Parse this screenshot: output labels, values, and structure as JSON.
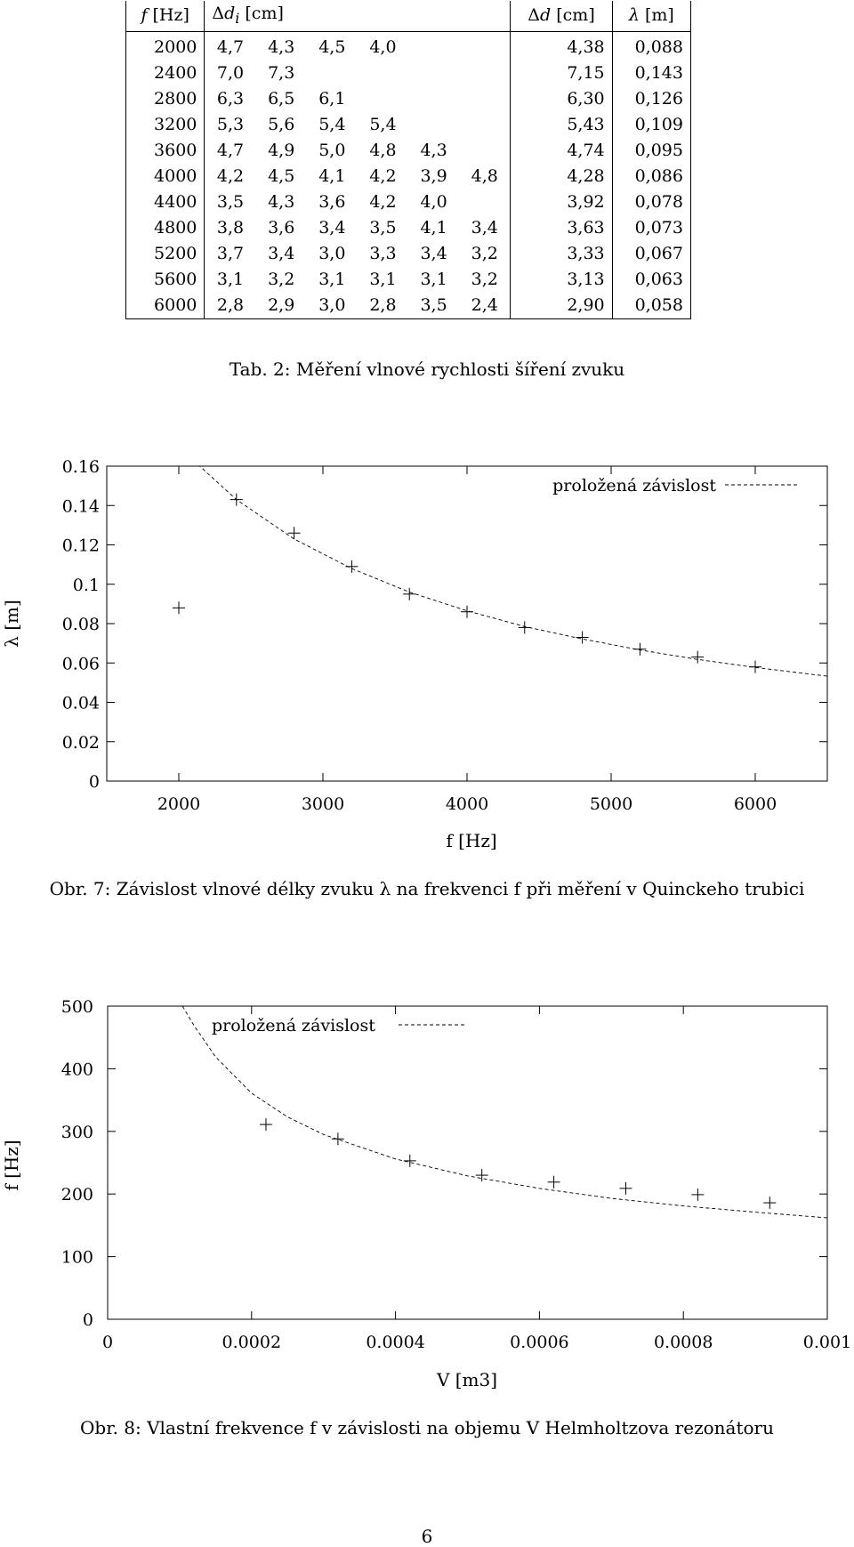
{
  "table": {
    "headers": {
      "f": "f [Hz]",
      "di": "Δd_i [cm]",
      "avg": "Δd [cm]",
      "lambda": "λ [m]"
    },
    "rows": [
      {
        "f": "2000",
        "d": [
          "4,7",
          "4,3",
          "4,5",
          "4,0",
          "",
          ""
        ],
        "avg": "4,38",
        "lambda": "0,088"
      },
      {
        "f": "2400",
        "d": [
          "7,0",
          "7,3",
          "",
          "",
          "",
          ""
        ],
        "avg": "7,15",
        "lambda": "0,143"
      },
      {
        "f": "2800",
        "d": [
          "6,3",
          "6,5",
          "6,1",
          "",
          "",
          ""
        ],
        "avg": "6,30",
        "lambda": "0,126"
      },
      {
        "f": "3200",
        "d": [
          "5,3",
          "5,6",
          "5,4",
          "5,4",
          "",
          ""
        ],
        "avg": "5,43",
        "lambda": "0,109"
      },
      {
        "f": "3600",
        "d": [
          "4,7",
          "4,9",
          "5,0",
          "4,8",
          "4,3",
          ""
        ],
        "avg": "4,74",
        "lambda": "0,095"
      },
      {
        "f": "4000",
        "d": [
          "4,2",
          "4,5",
          "4,1",
          "4,2",
          "3,9",
          "4,8"
        ],
        "avg": "4,28",
        "lambda": "0,086"
      },
      {
        "f": "4400",
        "d": [
          "3,5",
          "4,3",
          "3,6",
          "4,2",
          "4,0",
          ""
        ],
        "avg": "3,92",
        "lambda": "0,078"
      },
      {
        "f": "4800",
        "d": [
          "3,8",
          "3,6",
          "3,4",
          "3,5",
          "4,1",
          "3,4"
        ],
        "avg": "3,63",
        "lambda": "0,073"
      },
      {
        "f": "5200",
        "d": [
          "3,7",
          "3,4",
          "3,0",
          "3,3",
          "3,4",
          "3,2"
        ],
        "avg": "3,33",
        "lambda": "0,067"
      },
      {
        "f": "5600",
        "d": [
          "3,1",
          "3,2",
          "3,1",
          "3,1",
          "3,1",
          "3,2"
        ],
        "avg": "3,13",
        "lambda": "0,063"
      },
      {
        "f": "6000",
        "d": [
          "2,8",
          "2,9",
          "3,0",
          "2,8",
          "3,5",
          "2,4"
        ],
        "avg": "2,90",
        "lambda": "0,058"
      }
    ],
    "caption": "Tab. 2: Měření vlnové rychlosti šíření zvuku"
  },
  "chart_data": [
    {
      "type": "scatter",
      "title": "",
      "xlabel": "f [Hz]",
      "ylabel": "λ [m]",
      "xlim": [
        1500,
        6500
      ],
      "ylim": [
        0,
        0.16
      ],
      "x_ticks": [
        2000,
        3000,
        4000,
        5000,
        6000
      ],
      "x_tick_labels": [
        "2000",
        "3000",
        "4000",
        "5000",
        "6000"
      ],
      "y_ticks": [
        0,
        0.02,
        0.04,
        0.06,
        0.08,
        0.1,
        0.12,
        0.14,
        0.16
      ],
      "y_tick_labels": [
        "0",
        "0.02",
        "0.04",
        "0.06",
        "0.08",
        "0.1",
        "0.12",
        "0.14",
        "0.16"
      ],
      "grid": false,
      "legend": {
        "position": "top-right",
        "entries": [
          "proložená závislost"
        ]
      },
      "points": {
        "x": [
          2000,
          2400,
          2800,
          3200,
          3600,
          4000,
          4400,
          4800,
          5200,
          5600,
          6000
        ],
        "y": [
          0.088,
          0.143,
          0.126,
          0.109,
          0.095,
          0.086,
          0.078,
          0.073,
          0.067,
          0.063,
          0.058
        ]
      },
      "fit": {
        "style": "dashed",
        "x": [
          2100,
          2400,
          2800,
          3200,
          3600,
          4000,
          4400,
          4800,
          5200,
          5600,
          6000,
          6500
        ],
        "y": [
          0.163,
          0.143,
          0.123,
          0.108,
          0.096,
          0.0865,
          0.0785,
          0.0722,
          0.0666,
          0.0618,
          0.0577,
          0.0533
        ]
      },
      "caption": "Obr. 7: Závislost vlnové délky zvuku λ na frekvenci f při měření v Quinckeho trubici"
    },
    {
      "type": "scatter",
      "title": "",
      "xlabel": "V [m3]",
      "ylabel": "f [Hz]",
      "xlim": [
        0,
        0.001
      ],
      "ylim": [
        0,
        500
      ],
      "x_ticks": [
        0,
        0.0002,
        0.0004,
        0.0006,
        0.0008,
        0.001
      ],
      "x_tick_labels": [
        "0",
        "0.0002",
        "0.0004",
        "0.0006",
        "0.0008",
        "0.001"
      ],
      "y_ticks": [
        0,
        100,
        200,
        300,
        400,
        500
      ],
      "y_tick_labels": [
        "0",
        "100",
        "200",
        "300",
        "400",
        "500"
      ],
      "grid": false,
      "legend": {
        "position": "top-left",
        "entries": [
          "proložená závislost"
        ]
      },
      "points": {
        "x": [
          0.00022,
          0.00032,
          0.00042,
          0.00052,
          0.00062,
          0.00072,
          0.00082,
          0.00092
        ],
        "y": [
          311,
          288,
          253,
          230,
          219,
          209,
          199,
          186
        ]
      },
      "fit": {
        "style": "dashed",
        "x": [
          0.000104,
          0.00012,
          0.00015,
          0.0002,
          0.00025,
          0.0003,
          0.0004,
          0.0005,
          0.0006,
          0.0007,
          0.0008,
          0.0009,
          0.001
        ],
        "y": [
          500,
          469,
          419,
          361,
          323,
          295,
          256,
          229,
          209,
          193,
          181,
          171,
          162
        ]
      },
      "caption": "Obr. 8: Vlastní frekvence f v závislosti na objemu V Helmholtzova rezonátoru"
    }
  ],
  "page": {
    "number": "6"
  }
}
